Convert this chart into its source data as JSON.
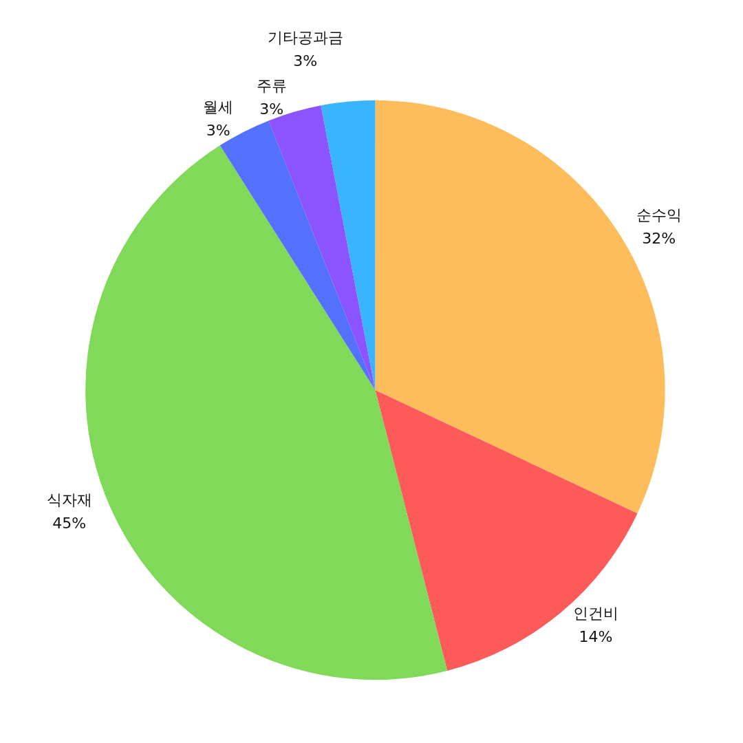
{
  "chart_data": {
    "type": "pie",
    "categories": [
      "순수익",
      "인건비",
      "식자재",
      "월세",
      "주류",
      "기타공과금"
    ],
    "values": [
      32,
      14,
      45,
      3,
      3,
      3
    ],
    "colors": [
      "#fdbd5c",
      "#fd5a5a",
      "#80d959",
      "#5471fe",
      "#8c54fe",
      "#3ab4fd"
    ],
    "value_labels": [
      "32%",
      "14%",
      "45%",
      "3%",
      "3%",
      "3%"
    ],
    "legend": false
  }
}
